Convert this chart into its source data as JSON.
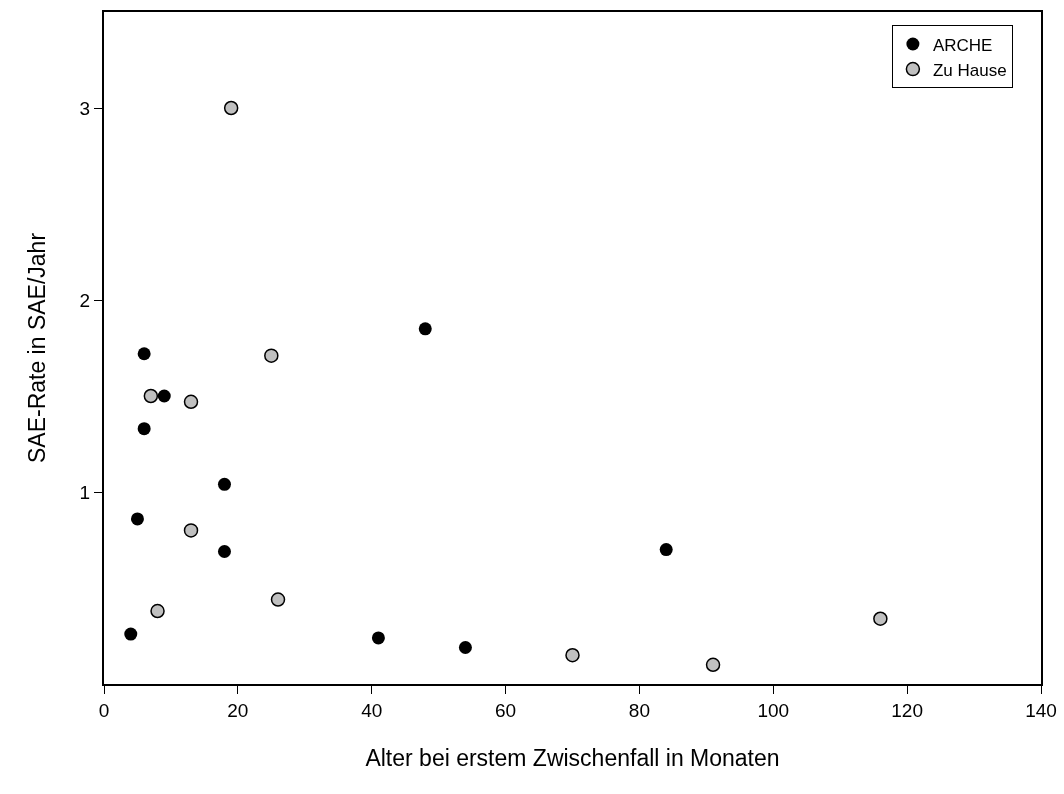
{
  "chart_data": {
    "type": "scatter",
    "xlabel": "Alter bei erstem Zwischenfall in Monaten",
    "ylabel": "SAE-Rate in SAE/Jahr",
    "xlim": [
      0,
      140
    ],
    "xticks": [
      0,
      20,
      40,
      60,
      80,
      100,
      120,
      140
    ],
    "ylim": [
      0,
      3.5
    ],
    "yticks": [
      1,
      2,
      3
    ],
    "grid": false,
    "legend": "top right",
    "marker": "circle",
    "series": [
      {
        "name": "ARCHE",
        "color": "#000000",
        "x": [
          4,
          5,
          6,
          6,
          9,
          18,
          18,
          41,
          48,
          54,
          84
        ],
        "values": [
          0.26,
          0.86,
          1.72,
          1.33,
          1.5,
          1.04,
          0.69,
          0.24,
          1.85,
          0.19,
          0.7
        ]
      },
      {
        "name": "Zu Hause",
        "color": "#c0c0c0",
        "x": [
          7,
          8,
          13,
          13,
          19,
          25,
          26,
          70,
          91,
          116
        ],
        "values": [
          1.5,
          0.38,
          1.47,
          0.8,
          3.0,
          1.71,
          0.44,
          0.15,
          0.1,
          0.34
        ]
      }
    ]
  }
}
